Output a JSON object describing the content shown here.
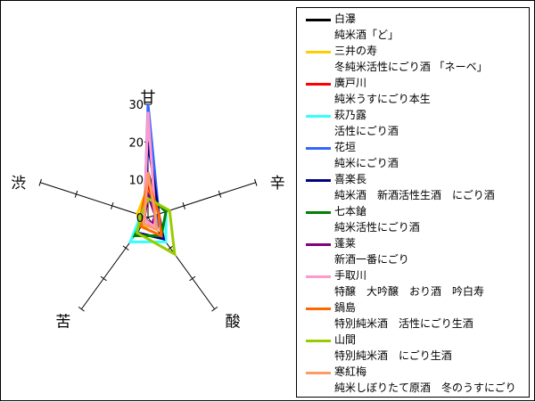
{
  "chart_data": {
    "type": "radar",
    "axes": [
      "甘",
      "辛",
      "酸",
      "苦",
      "渋"
    ],
    "rlim": [
      0,
      30
    ],
    "ticks": [
      "0",
      "10",
      "20",
      "30"
    ],
    "series": [
      {
        "name": "白瀑",
        "subtitle": "純米酒「ど」",
        "color": "#000000",
        "values": [
          12,
          3,
          3,
          1,
          1
        ]
      },
      {
        "name": "三井の寿",
        "subtitle": "冬純米活性にごり酒 「ネーベ」",
        "color": "#FFCC00",
        "values": [
          8,
          2,
          3,
          3,
          3
        ]
      },
      {
        "name": "廣戸川",
        "subtitle": "純米うすにごり本生",
        "color": "#FF0000",
        "values": [
          10,
          2,
          2,
          1,
          1
        ]
      },
      {
        "name": "萩乃露",
        "subtitle": "活性にごり酒",
        "color": "#33FFFF",
        "values": [
          6,
          5,
          8,
          8,
          2
        ]
      },
      {
        "name": "花垣",
        "subtitle": "純米にごり酒",
        "color": "#3366FF",
        "values": [
          30,
          3,
          4,
          2,
          1
        ]
      },
      {
        "name": "喜楽長",
        "subtitle": "純米酒　新酒活性生酒　にごり酒",
        "color": "#000080",
        "values": [
          20,
          3,
          7,
          5,
          1
        ]
      },
      {
        "name": "七本鎗",
        "subtitle": "純米活性にごり酒",
        "color": "#008000",
        "values": [
          6,
          5,
          6,
          6,
          1
        ]
      },
      {
        "name": "蓬莱",
        "subtitle": "新酒一番にごり",
        "color": "#800080",
        "values": [
          6,
          2,
          2,
          1,
          1
        ]
      },
      {
        "name": "手取川",
        "subtitle": "特醸　大吟醸　おり酒　吟白寿",
        "color": "#FF99CC",
        "values": [
          28,
          2,
          3,
          1,
          1
        ]
      },
      {
        "name": "鍋島",
        "subtitle": "特別純米酒　活性にごり生酒",
        "color": "#FF6600",
        "values": [
          10,
          3,
          6,
          3,
          2
        ]
      },
      {
        "name": "山間",
        "subtitle": "特別純米酒　にごり生酒",
        "color": "#99CC00",
        "values": [
          5,
          6,
          12,
          5,
          2
        ]
      },
      {
        "name": "寒紅梅",
        "subtitle": "純米しぼりたて原酒　冬のうすにごり",
        "color": "#FF9966",
        "values": [
          12,
          2,
          4,
          2,
          1
        ]
      }
    ]
  }
}
